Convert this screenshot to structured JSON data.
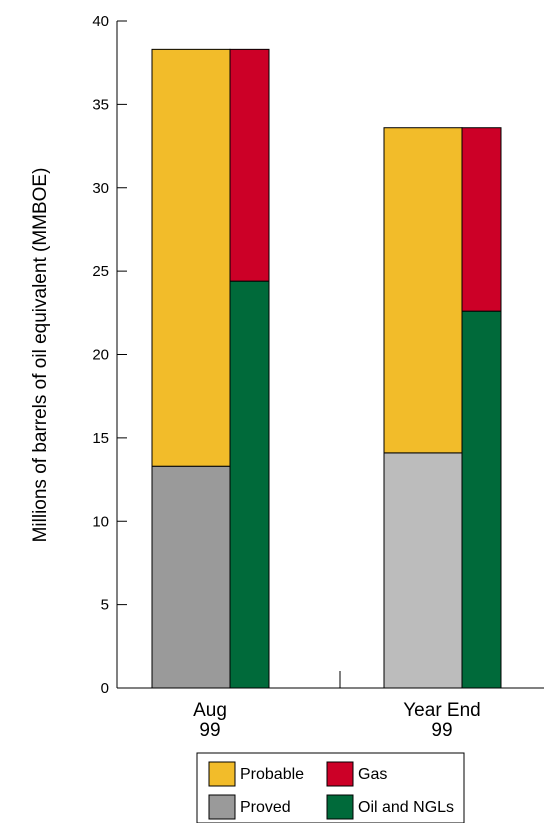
{
  "chart_data": {
    "type": "bar",
    "stacked": true,
    "ylabel": "Millions of barrels of oil equivalent (MMBOE)",
    "ylim": [
      0,
      40
    ],
    "yticks": [
      0,
      5,
      10,
      15,
      20,
      25,
      30,
      35,
      40
    ],
    "grid": false,
    "categories": [
      {
        "line1": "Aug",
        "line2": "99"
      },
      {
        "line1": "Year End",
        "line2": "99"
      }
    ],
    "stacks": [
      {
        "name": "reserve-category",
        "series": [
          {
            "name": "Proved",
            "color_aug": "#9a9a9a",
            "color_ye": "#bcbcbc",
            "values": [
              13.3,
              14.1
            ]
          },
          {
            "name": "Probable",
            "color": "#f2bc2a",
            "values": [
              25.0,
              19.5
            ]
          }
        ]
      },
      {
        "name": "product-type",
        "series": [
          {
            "name": "Oil and NGLs",
            "color": "#006a3a",
            "values": [
              24.4,
              22.6
            ]
          },
          {
            "name": "Gas",
            "color": "#cc0027",
            "values": [
              13.9,
              11.0
            ]
          }
        ]
      }
    ],
    "legend": {
      "placement": "bottom",
      "items": [
        {
          "label": "Probable",
          "color": "#f2bc2a"
        },
        {
          "label": "Gas",
          "color": "#cc0027"
        },
        {
          "label": "Proved",
          "color": "#9a9a9a"
        },
        {
          "label": "Oil and NGLs",
          "color": "#006a3a"
        }
      ]
    }
  }
}
